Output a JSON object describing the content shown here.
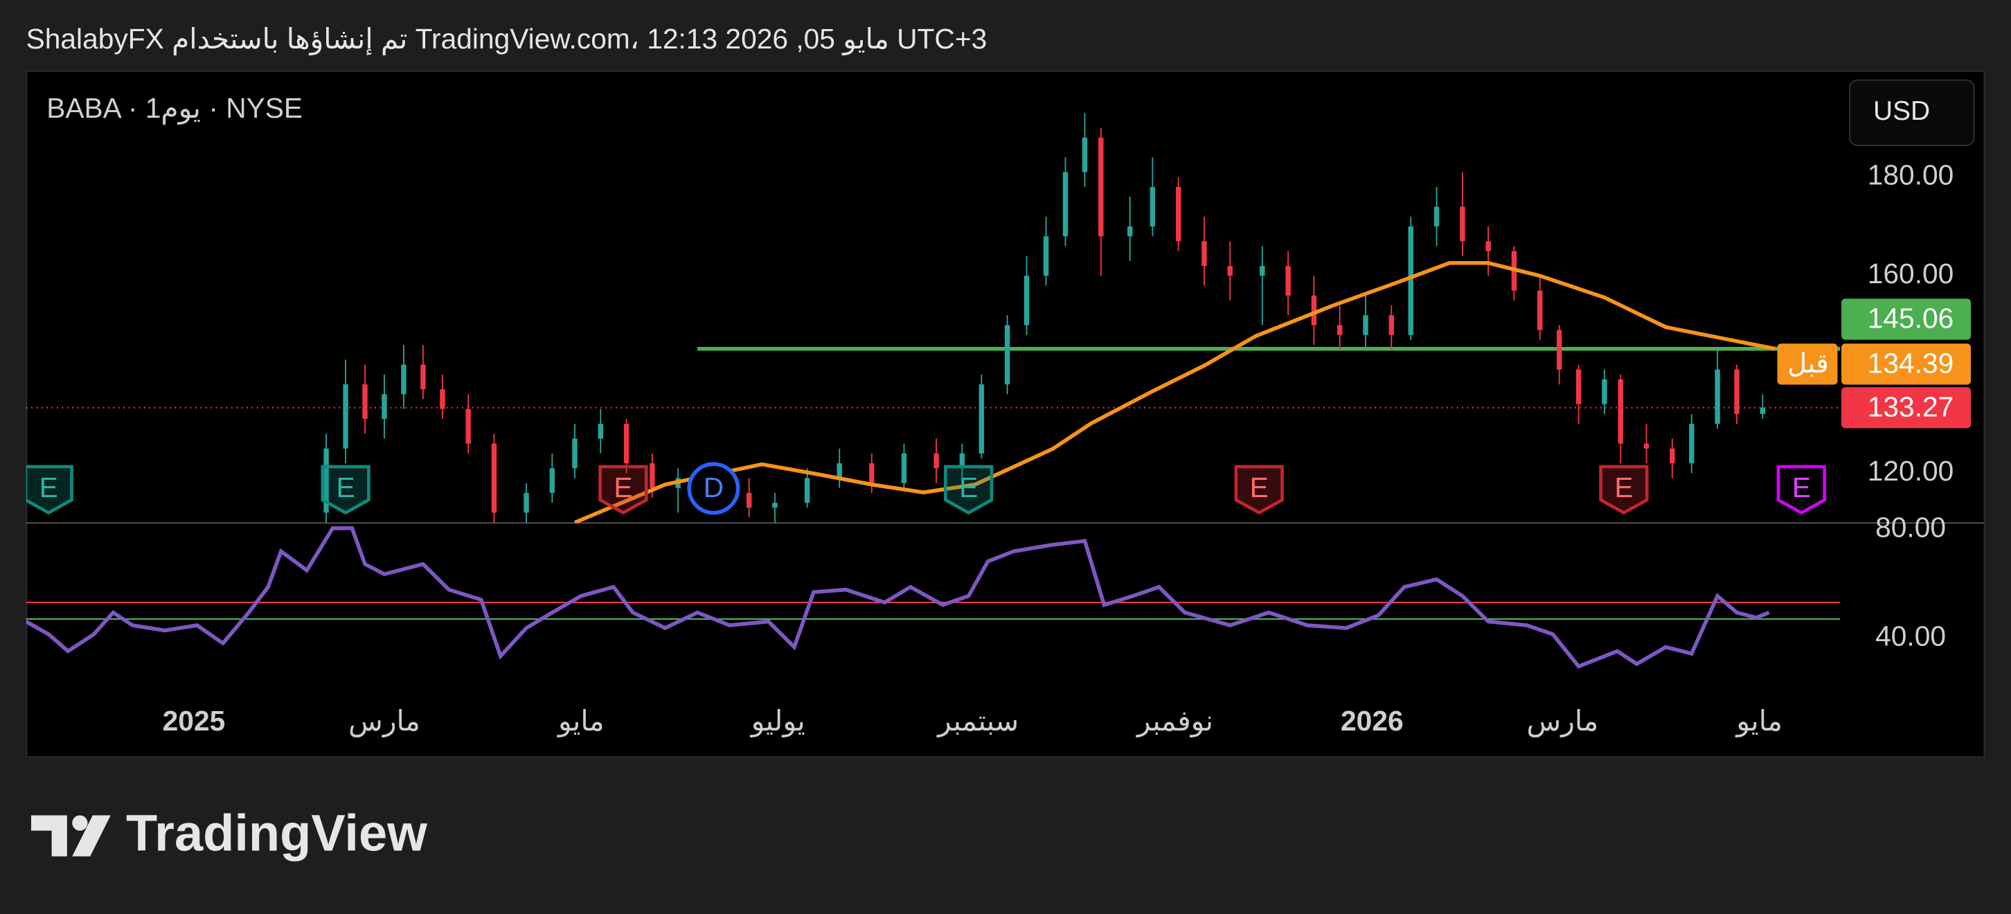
{
  "header": "ShalabyFX تم إنشاؤها باستخدام TradingView.com، 12:13 2026 ,05 مايو UTC+3",
  "footer": {
    "brand": "TradingView"
  },
  "chart_data": {
    "type": "candlestick",
    "symbol": "BABA · 1يوم · NYSE",
    "currency": "USD",
    "xlim": [
      -52,
      510
    ],
    "xticks": [
      {
        "value": 0,
        "label": "2025"
      },
      {
        "value": 59,
        "label": "مارس"
      },
      {
        "value": 120,
        "label": "مايو"
      },
      {
        "value": 181,
        "label": "يوليو"
      },
      {
        "value": 243,
        "label": "سبتمبر"
      },
      {
        "value": 304,
        "label": "نوفمبر"
      },
      {
        "value": 365,
        "label": "2026"
      },
      {
        "value": 424,
        "label": "مارس"
      },
      {
        "value": 485,
        "label": "مايو"
      }
    ],
    "ylim": [
      109.9,
      201.6
    ],
    "yticks": [
      {
        "value": 120,
        "label": "120.00"
      },
      {
        "value": 160,
        "label": "160.00"
      },
      {
        "value": 180,
        "label": "180.00"
      }
    ],
    "up_color": "#26a69a",
    "down_color": "#f23645",
    "candles": [
      [
        41,
        112,
        128,
        108,
        125
      ],
      [
        47,
        125,
        143,
        122,
        138
      ],
      [
        53,
        138,
        142,
        128,
        131
      ],
      [
        59,
        131,
        140,
        127,
        136
      ],
      [
        65,
        136,
        146,
        133,
        142
      ],
      [
        71,
        142,
        146,
        135,
        137
      ],
      [
        77,
        137,
        140,
        131,
        133
      ],
      [
        85,
        133,
        136,
        124,
        126
      ],
      [
        93,
        126,
        128,
        108,
        112
      ],
      [
        103,
        112,
        118,
        108,
        116
      ],
      [
        111,
        116,
        124,
        114,
        121
      ],
      [
        118,
        121,
        130,
        119,
        127
      ],
      [
        126,
        127,
        133,
        124,
        130
      ],
      [
        134,
        130,
        131,
        120,
        122
      ],
      [
        142,
        122,
        124,
        115,
        117
      ],
      [
        150,
        117,
        121,
        112,
        119
      ],
      [
        162,
        119,
        122,
        114,
        116
      ],
      [
        172,
        116,
        119,
        111,
        113
      ],
      [
        180,
        113,
        116,
        110,
        114
      ],
      [
        190,
        114,
        121,
        113,
        119
      ],
      [
        200,
        119,
        125,
        117,
        122
      ],
      [
        210,
        122,
        124,
        116,
        118
      ],
      [
        220,
        118,
        126,
        117,
        124
      ],
      [
        230,
        124,
        127,
        118,
        121
      ],
      [
        238,
        121,
        126,
        119,
        124
      ],
      [
        244,
        124,
        140,
        123,
        138
      ],
      [
        252,
        138,
        152,
        136,
        150
      ],
      [
        258,
        150,
        164,
        148,
        160
      ],
      [
        264,
        160,
        172,
        158,
        168
      ],
      [
        270,
        168,
        184,
        166,
        181
      ],
      [
        276,
        181,
        193,
        178,
        188
      ],
      [
        281,
        188,
        190,
        160,
        168
      ],
      [
        290,
        168,
        176,
        163,
        170
      ],
      [
        297,
        170,
        184,
        168,
        178
      ],
      [
        305,
        178,
        180,
        165,
        167
      ],
      [
        313,
        167,
        172,
        158,
        162
      ],
      [
        321,
        162,
        167,
        155,
        160
      ],
      [
        331,
        160,
        166,
        150,
        162
      ],
      [
        339,
        162,
        165,
        152,
        156
      ],
      [
        347,
        156,
        160,
        146,
        150
      ],
      [
        355,
        150,
        154,
        145,
        148
      ],
      [
        363,
        148,
        156,
        145,
        152
      ],
      [
        371,
        152,
        154,
        145,
        148
      ],
      [
        377,
        148,
        172,
        147,
        170
      ],
      [
        385,
        170,
        178,
        166,
        174
      ],
      [
        393,
        174,
        181,
        164,
        167
      ],
      [
        401,
        167,
        170,
        160,
        165
      ],
      [
        409,
        165,
        166,
        155,
        157
      ],
      [
        417,
        157,
        160,
        147,
        149
      ],
      [
        423,
        149,
        150,
        138,
        141
      ],
      [
        429,
        141,
        142,
        130,
        134
      ],
      [
        437,
        134,
        141,
        132,
        139
      ],
      [
        442,
        139,
        140,
        122,
        126
      ],
      [
        450,
        126,
        130,
        122,
        125
      ],
      [
        458,
        125,
        127,
        119,
        122
      ],
      [
        464,
        122,
        132,
        120,
        130
      ],
      [
        472,
        130,
        145,
        129,
        141
      ],
      [
        478,
        141,
        142,
        130,
        132
      ],
      [
        486,
        132,
        136,
        131,
        133.27
      ]
    ],
    "ma": {
      "color": "#f7931a",
      "x": [
        118,
        146,
        176,
        194,
        210,
        226,
        242,
        266,
        278,
        297,
        313,
        329,
        353,
        373,
        389,
        401,
        417,
        437,
        456,
        476,
        490
      ],
      "values": [
        110,
        117.7,
        121.8,
        119.7,
        117.7,
        116.1,
        117.7,
        124.9,
        130.1,
        136.6,
        141.8,
        147.8,
        154.0,
        158.7,
        162.6,
        162.6,
        160.0,
        155.6,
        149.6,
        147.0,
        145.2
      ]
    },
    "hline": {
      "value": 145.2,
      "from": 156,
      "color": "#4caf50"
    },
    "last_price": {
      "value": 133.27,
      "label": "133.27",
      "color": "#f23645"
    },
    "premarket": {
      "value": 134.39,
      "label": "134.39",
      "tag": "قبل",
      "color": "#f7931a"
    },
    "ma_value": {
      "value": 145.06,
      "label": "145.06",
      "color": "#4caf50"
    },
    "events": [
      {
        "x": -45,
        "label": "E",
        "color": "#0f8a7e"
      },
      {
        "x": 47,
        "label": "E",
        "color": "#0f8a7e"
      },
      {
        "x": 133,
        "label": "E",
        "color": "#c2262e"
      },
      {
        "x": 161,
        "label": "D",
        "color": "#2962ff"
      },
      {
        "x": 240,
        "label": "E",
        "color": "#0f8a7e"
      },
      {
        "x": 330,
        "label": "E",
        "color": "#c2262e"
      },
      {
        "x": 443,
        "label": "E",
        "color": "#c2262e"
      },
      {
        "x": 498,
        "label": "E",
        "color": "#d500f9"
      }
    ],
    "rsi": {
      "color": "#7e57c2",
      "ylim": [
        20.2,
        82.4
      ],
      "yticks": [
        {
          "value": 40,
          "label": "40.00"
        },
        {
          "value": 80,
          "label": "80.00"
        }
      ],
      "upper": 53.2,
      "lower": 47.1,
      "x": [
        -52,
        -45,
        -39,
        -31,
        -25,
        -19,
        -9,
        1,
        9,
        17,
        23,
        27,
        35,
        43,
        49,
        53,
        59,
        71,
        79,
        89,
        95,
        103,
        111,
        120,
        130,
        136,
        146,
        156,
        166,
        178,
        186,
        192,
        202,
        214,
        222,
        232,
        240,
        246,
        254,
        266,
        276,
        282,
        291,
        299,
        307,
        321,
        333,
        345,
        357,
        367,
        375,
        385,
        393,
        401,
        413,
        421,
        429,
        441,
        447,
        456,
        464,
        472,
        478,
        484,
        488
      ],
      "values": [
        46.2,
        41.5,
        35.3,
        41.5,
        49.5,
        44.8,
        42.9,
        44.8,
        38.2,
        49.5,
        58.9,
        72.0,
        65.0,
        80.5,
        80.5,
        67.3,
        63.6,
        67.3,
        57.9,
        54.2,
        33.5,
        43.8,
        49.5,
        55.6,
        58.9,
        49.5,
        43.8,
        49.5,
        44.8,
        46.2,
        36.8,
        57.0,
        57.9,
        53.2,
        58.9,
        52.3,
        55.6,
        68.3,
        72.0,
        74.4,
        75.8,
        52.3,
        55.6,
        58.9,
        49.5,
        44.8,
        49.5,
        44.8,
        43.8,
        48.5,
        58.9,
        61.7,
        55.6,
        46.2,
        44.8,
        41.5,
        29.7,
        35.3,
        30.6,
        36.8,
        34.4,
        55.6,
        49.5,
        47.6,
        49.5
      ]
    }
  }
}
